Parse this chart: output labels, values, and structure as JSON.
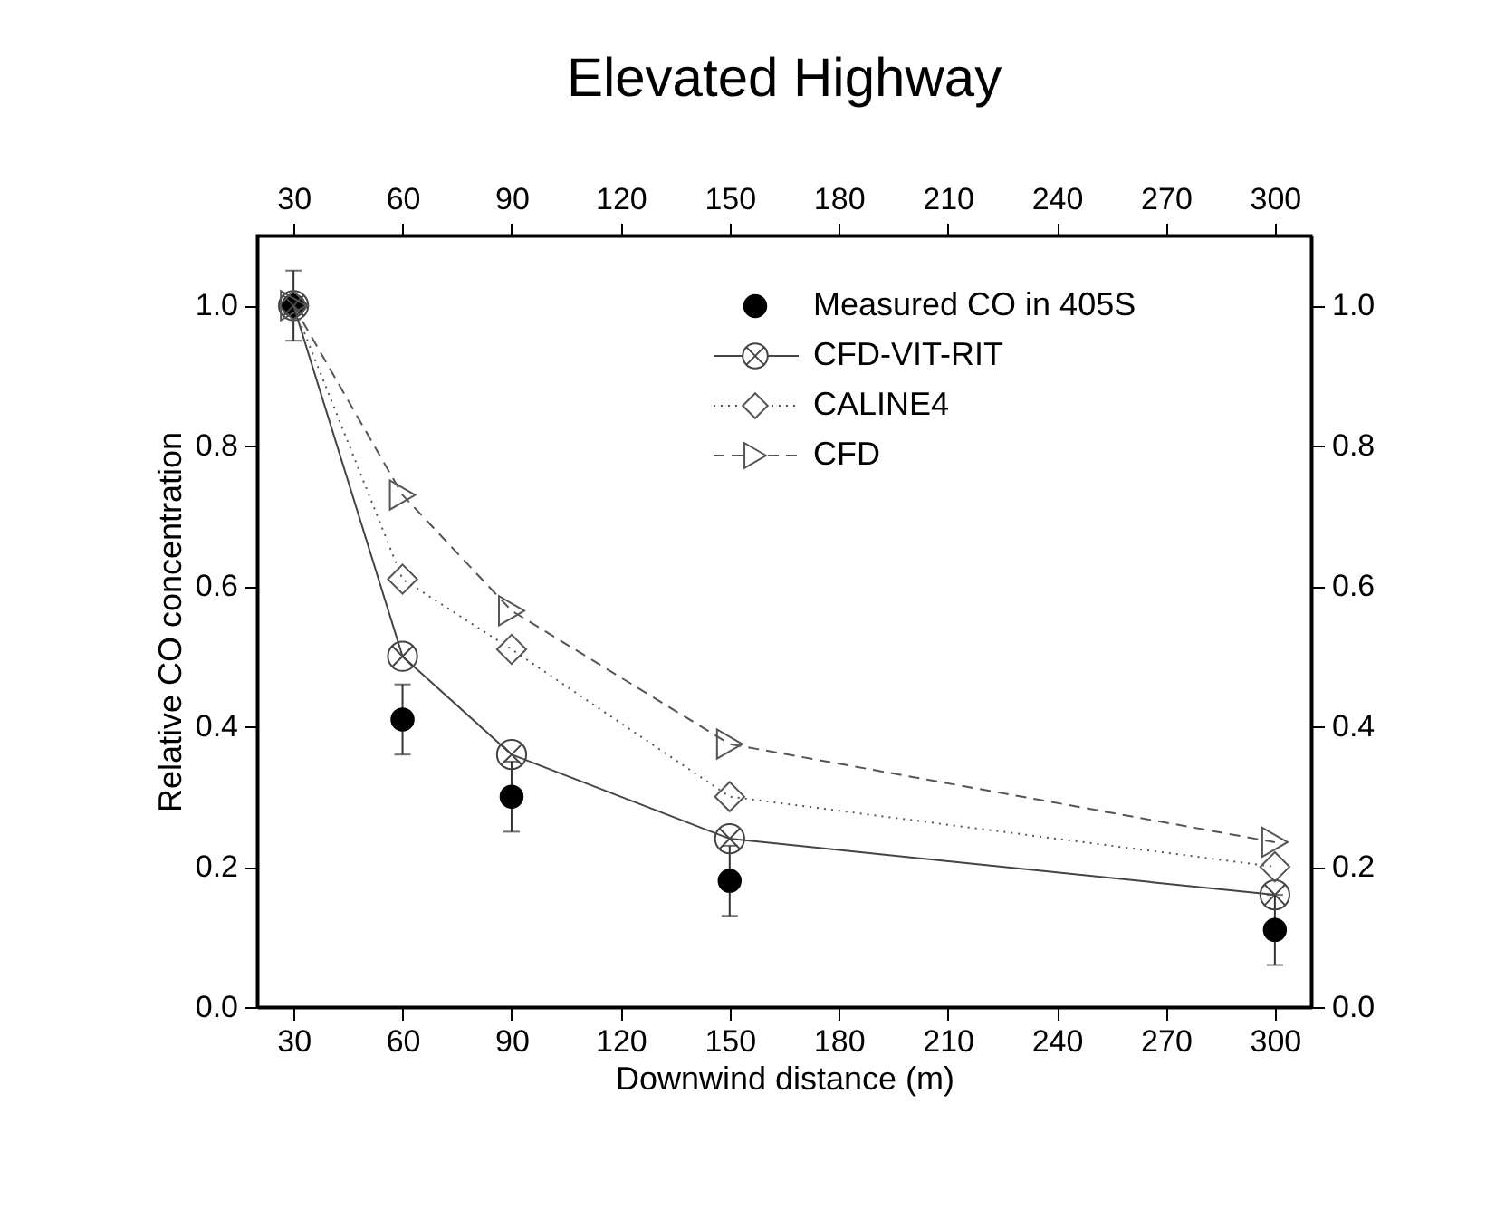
{
  "chart_data": {
    "type": "line",
    "title": "Elevated Highway",
    "xlabel": "Downwind distance (m)",
    "ylabel": "Relative CO concentration",
    "x": [
      30,
      60,
      90,
      150,
      300
    ],
    "series": [
      {
        "name": "Measured CO in 405S",
        "type": "scatter",
        "color": "#000000",
        "marker": "circle",
        "values": [
          1.0,
          0.41,
          0.3,
          0.18,
          0.11
        ],
        "errors": [
          0.05,
          0.05,
          0.05,
          0.05,
          0.05
        ]
      },
      {
        "name": "CFD-VIT-RIT",
        "color": "#444444",
        "marker": "cross",
        "line_style": "solid",
        "values": [
          1.0,
          0.5,
          0.36,
          0.24,
          0.16
        ]
      },
      {
        "name": "CALINE4",
        "color": "#555555",
        "marker": "diamond",
        "line_style": "dotted",
        "values": [
          1.0,
          0.61,
          0.51,
          0.3,
          0.2
        ]
      },
      {
        "name": "CFD",
        "color": "#555555",
        "marker": "triangle",
        "line_style": "dashed",
        "values": [
          1.0,
          0.73,
          0.565,
          0.375,
          0.235
        ]
      }
    ],
    "xlim": [
      20,
      310
    ],
    "xticks": [
      30,
      60,
      90,
      120,
      150,
      180,
      210,
      240,
      270,
      300
    ],
    "x2lim": [
      20,
      310
    ],
    "x2ticks": [
      30,
      60,
      90,
      120,
      150,
      180,
      210,
      240,
      270,
      300
    ],
    "ylim": [
      0,
      1.1
    ],
    "yticks": [
      {
        "value": 0,
        "label": "0.0"
      },
      {
        "value": 0.2,
        "label": "0.2"
      },
      {
        "value": 0.4,
        "label": "0.4"
      },
      {
        "value": 0.6,
        "label": "0.6"
      },
      {
        "value": 0.8,
        "label": "0.8"
      },
      {
        "value": 1.0,
        "label": "1.0"
      }
    ],
    "y2lim": [
      0,
      1.1
    ],
    "y2ticks": [
      {
        "value": 0,
        "label": "0.0"
      },
      {
        "value": 0.2,
        "label": "0.2"
      },
      {
        "value": 0.4,
        "label": "0.4"
      },
      {
        "value": 0.6,
        "label": "0.6"
      },
      {
        "value": 0.8,
        "label": "0.8"
      },
      {
        "value": 1.0,
        "label": "1.0"
      }
    ],
    "grid": false,
    "legend": "top right"
  }
}
